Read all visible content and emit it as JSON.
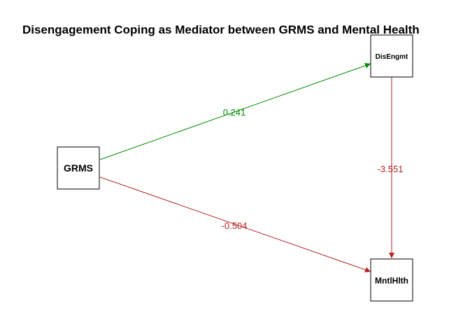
{
  "title": "Disengagement Coping as Mediator between GRMS and Mental Health",
  "nodes": {
    "grms": {
      "label": "GRMS"
    },
    "diseng": {
      "label": "DisEngmt"
    },
    "mntl": {
      "label": "MntlHlth"
    }
  },
  "edges": {
    "grms_diseng": {
      "label": "0.241",
      "color": "#008B00"
    },
    "grms_mntl": {
      "label": "-0.504",
      "color": "#B22222"
    },
    "diseng_mntl": {
      "label": "-3.551",
      "color": "#B22222"
    }
  }
}
